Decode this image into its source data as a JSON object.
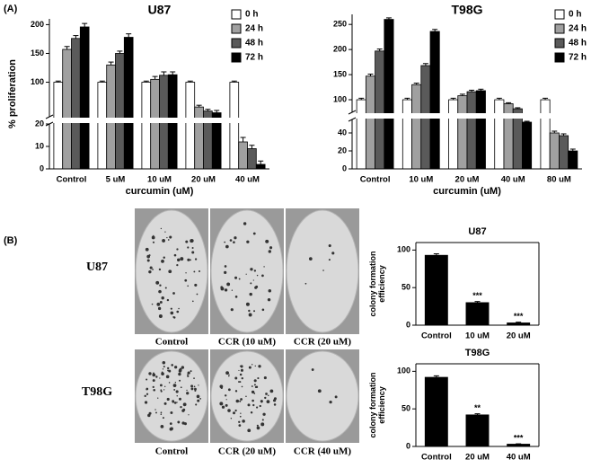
{
  "panel_labels": [
    "(A)",
    "(B)"
  ],
  "plates": {
    "rows": [
      "U87",
      "T98G"
    ],
    "captions": [
      [
        "Control",
        "CCR (10 uM)",
        "CCR (20 uM)"
      ],
      [
        "Control",
        "CCR (20 uM)",
        "CCR (40 uM)"
      ]
    ]
  },
  "chart_data": [
    {
      "type": "bar",
      "title": "U87",
      "x_label": "curcumin (uM)",
      "y_label": "% proliferation",
      "categories": [
        "Control",
        "5 uM",
        "10 uM",
        "20 uM",
        "40 uM"
      ],
      "series": [
        {
          "name": "0 h",
          "color": "#ffffff",
          "values": [
            100,
            100,
            100,
            100,
            100
          ],
          "errors": [
            2,
            2,
            2,
            2,
            2
          ]
        },
        {
          "name": "24 h",
          "color": "#a0a0a0",
          "values": [
            157,
            130,
            105,
            57,
            12
          ],
          "errors": [
            5,
            5,
            5,
            3,
            2
          ]
        },
        {
          "name": "48 h",
          "color": "#5a5a5a",
          "values": [
            176,
            150,
            112,
            50,
            9
          ],
          "errors": [
            5,
            4,
            6,
            3,
            1.5
          ]
        },
        {
          "name": "72 h",
          "color": "#000000",
          "values": [
            196,
            178,
            113,
            47,
            2
          ],
          "errors": [
            6,
            6,
            5,
            4,
            1.5
          ]
        }
      ],
      "ylim": [
        0,
        210
      ],
      "axis_break": [
        20,
        40
      ],
      "yticks": [
        0,
        10,
        20,
        100,
        150,
        200
      ],
      "legend": "upper right"
    },
    {
      "type": "bar",
      "title": "T98G",
      "x_label": "curcumin (uM)",
      "categories": [
        "Control",
        "10 uM",
        "20 uM",
        "40 uM",
        "80 uM"
      ],
      "series": [
        {
          "name": "0 h",
          "color": "#ffffff",
          "values": [
            100,
            100,
            100,
            100,
            100
          ],
          "errors": [
            3,
            3,
            3,
            3,
            3
          ]
        },
        {
          "name": "24 h",
          "color": "#a0a0a0",
          "values": [
            147,
            130,
            108,
            92,
            40
          ],
          "errors": [
            4,
            3,
            3,
            2,
            2
          ]
        },
        {
          "name": "48 h",
          "color": "#5a5a5a",
          "values": [
            197,
            168,
            116,
            82,
            37
          ],
          "errors": [
            4,
            4,
            3,
            2,
            2
          ]
        },
        {
          "name": "72 h",
          "color": "#000000",
          "values": [
            260,
            236,
            118,
            52,
            20
          ],
          "errors": [
            3,
            4,
            3,
            1,
            2
          ]
        }
      ],
      "ylim": [
        0,
        270
      ],
      "axis_break": [
        55,
        75
      ],
      "yticks": [
        0,
        20,
        40,
        100,
        150,
        200,
        250
      ],
      "legend": "upper right"
    },
    {
      "type": "bar",
      "title": "U87",
      "y_label": "colony formation efficiency",
      "categories": [
        "Control",
        "10 uM",
        "20 uM"
      ],
      "values": [
        93,
        30,
        3
      ],
      "errors": [
        2,
        1.5,
        1
      ],
      "annotations": [
        null,
        "***",
        "***"
      ],
      "color": "#000000",
      "ylim": [
        0,
        110
      ],
      "yticks": [
        0,
        50,
        100
      ]
    },
    {
      "type": "bar",
      "title": "T98G",
      "y_label": "colony formation efficiency",
      "categories": [
        "Control",
        "20 uM",
        "40 uM"
      ],
      "values": [
        92,
        42,
        3
      ],
      "errors": [
        2,
        1.5,
        0.5
      ],
      "annotations": [
        null,
        "**",
        "***"
      ],
      "color": "#000000",
      "ylim": [
        0,
        110
      ],
      "yticks": [
        0,
        50,
        100
      ]
    }
  ]
}
